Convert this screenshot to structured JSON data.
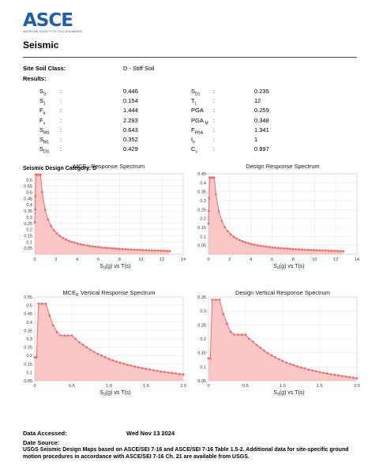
{
  "header": {
    "logo_text": "ASCE",
    "logo_subtext": "AMERICAN SOCIETY OF CIVIL ENGINEERS",
    "title": "Seismic"
  },
  "site": {
    "soil_class_label": "Site Soil Class:",
    "soil_class_value": "D - Stiff Soil",
    "results_label": "Results:"
  },
  "results_left": [
    {
      "sym": "S",
      "sub": "S",
      "colon": ":",
      "value": "0.446"
    },
    {
      "sym": "S",
      "sub": "1",
      "colon": ":",
      "value": "0.154"
    },
    {
      "sym": "F",
      "sub": "a",
      "colon": ":",
      "value": "1.444"
    },
    {
      "sym": "F",
      "sub": "v",
      "colon": ":",
      "value": "2.293"
    },
    {
      "sym": "S",
      "sub": "MS",
      "colon": ":",
      "value": "0.643"
    },
    {
      "sym": "S",
      "sub": "M1",
      "colon": ":",
      "value": "0.352"
    },
    {
      "sym": "S",
      "sub": "DS",
      "colon": ":",
      "value": "0.429"
    }
  ],
  "results_right": [
    {
      "sym": "S",
      "sub": "D1",
      "colon": ":",
      "value": "0.235"
    },
    {
      "sym": "T",
      "sub": "L",
      "colon": ":",
      "value": "12"
    },
    {
      "sym": "PGA",
      "sub": "",
      "colon": ":",
      "value": "0.259"
    },
    {
      "sym": "PGA ",
      "sub": "M",
      "colon": ":",
      "value": "0.348"
    },
    {
      "sym": "F",
      "sub": "PGA",
      "colon": ":",
      "value": "1.341"
    },
    {
      "sym": "I",
      "sub": "e",
      "colon": ":",
      "value": "1"
    },
    {
      "sym": "C",
      "sub": "v",
      "colon": ":",
      "value": "0.997"
    }
  ],
  "sdc_label": "Seismic Design Category: D",
  "chart_data": [
    {
      "type": "area",
      "title_main": "MCE",
      "title_sub": "R",
      "title_rest": " Response Spectrum",
      "xlabel_main": "S",
      "xlabel_sub": "a",
      "xlabel_rest": "(g) vs T(s)",
      "xlim": [
        0,
        14
      ],
      "ylim": [
        0,
        0.65
      ],
      "xticks": [
        "0",
        "2",
        "4",
        "6",
        "8",
        "10",
        "12",
        "14"
      ],
      "yticks": [
        "0.05",
        "0.1",
        "0.15",
        "0.2",
        "0.25",
        "0.3",
        "0.35",
        "0.4",
        "0.45",
        "0.5",
        "0.55",
        "0.6"
      ],
      "kind": "horizontal",
      "params": {
        "peak": 0.643,
        "t0": 0.109,
        "ts": 0.547,
        "tl": 12,
        "sd1": 0.352,
        "tmax": 13
      }
    },
    {
      "type": "area",
      "title_main": "Design Response Spectrum",
      "title_sub": "",
      "title_rest": "",
      "xlabel_main": "S",
      "xlabel_sub": "a",
      "xlabel_rest": "(g) vs T(s)",
      "xlim": [
        0,
        14
      ],
      "ylim": [
        0,
        0.45
      ],
      "xticks": [
        "0",
        "2",
        "4",
        "6",
        "8",
        "10",
        "12",
        "14"
      ],
      "yticks": [
        "0.05",
        "0.1",
        "0.15",
        "0.2",
        "0.25",
        "0.3",
        "0.35",
        "0.4",
        "0.45"
      ],
      "kind": "horizontal",
      "params": {
        "peak": 0.429,
        "t0": 0.109,
        "ts": 0.547,
        "tl": 12,
        "sd1": 0.235,
        "tmax": 13
      }
    },
    {
      "type": "area",
      "title_main": "MCE",
      "title_sub": "R",
      "title_rest": " Vertical Response Spectrum",
      "xlabel_main": "S",
      "xlabel_sub": "a",
      "xlabel_rest": "(g) vs T(s)",
      "xlim": [
        0,
        2
      ],
      "ylim": [
        0.05,
        0.55
      ],
      "xticks": [
        "0",
        "0.5",
        "1.0",
        "1.5",
        "2.0"
      ],
      "yticks": [
        "0.05",
        "0.1",
        "0.15",
        "0.2",
        "0.25",
        "0.3",
        "0.35",
        "0.4",
        "0.45",
        "0.5",
        "0.55"
      ],
      "kind": "vertical",
      "points": [
        [
          0,
          0.19
        ],
        [
          0.025,
          0.19
        ],
        [
          0.05,
          0.51
        ],
        [
          0.1,
          0.51
        ],
        [
          0.15,
          0.51
        ],
        [
          0.2,
          0.44
        ],
        [
          0.25,
          0.38
        ],
        [
          0.3,
          0.34
        ],
        [
          0.35,
          0.32
        ],
        [
          0.4,
          0.32
        ],
        [
          0.45,
          0.32
        ],
        [
          0.5,
          0.32
        ],
        [
          0.55,
          0.3
        ],
        [
          0.6,
          0.28
        ],
        [
          0.65,
          0.265
        ],
        [
          0.7,
          0.25
        ],
        [
          0.75,
          0.235
        ],
        [
          0.8,
          0.222
        ],
        [
          0.85,
          0.21
        ],
        [
          0.9,
          0.2
        ],
        [
          0.95,
          0.19
        ],
        [
          1.0,
          0.18
        ],
        [
          1.05,
          0.172
        ],
        [
          1.1,
          0.165
        ],
        [
          1.15,
          0.158
        ],
        [
          1.2,
          0.152
        ],
        [
          1.25,
          0.146
        ],
        [
          1.3,
          0.14
        ],
        [
          1.35,
          0.135
        ],
        [
          1.4,
          0.13
        ],
        [
          1.45,
          0.125
        ],
        [
          1.5,
          0.121
        ],
        [
          1.55,
          0.117
        ],
        [
          1.6,
          0.113
        ],
        [
          1.65,
          0.109
        ],
        [
          1.7,
          0.105
        ],
        [
          1.75,
          0.102
        ],
        [
          1.8,
          0.099
        ],
        [
          1.85,
          0.096
        ],
        [
          1.9,
          0.093
        ],
        [
          1.95,
          0.09
        ],
        [
          2.0,
          0.088
        ]
      ]
    },
    {
      "type": "area",
      "title_main": "Design Vertical Response Spectrum",
      "title_sub": "",
      "title_rest": "",
      "xlabel_main": "S",
      "xlabel_sub": "a",
      "xlabel_rest": "(g) vs T(s)",
      "xlim": [
        0,
        2
      ],
      "ylim": [
        0.05,
        0.35
      ],
      "xticks": [
        "0",
        "0.5",
        "1.0",
        "1.5",
        "2.0"
      ],
      "yticks": [
        "0.05",
        "0.1",
        "0.15",
        "0.2",
        "0.25",
        "0.3",
        "0.35"
      ],
      "kind": "vertical",
      "points": [
        [
          0,
          0.13
        ],
        [
          0.025,
          0.13
        ],
        [
          0.05,
          0.34
        ],
        [
          0.1,
          0.34
        ],
        [
          0.15,
          0.34
        ],
        [
          0.2,
          0.29
        ],
        [
          0.25,
          0.255
        ],
        [
          0.3,
          0.225
        ],
        [
          0.35,
          0.215
        ],
        [
          0.4,
          0.215
        ],
        [
          0.45,
          0.215
        ],
        [
          0.5,
          0.215
        ],
        [
          0.55,
          0.2
        ],
        [
          0.6,
          0.19
        ],
        [
          0.65,
          0.178
        ],
        [
          0.7,
          0.168
        ],
        [
          0.75,
          0.158
        ],
        [
          0.8,
          0.149
        ],
        [
          0.85,
          0.141
        ],
        [
          0.9,
          0.134
        ],
        [
          0.95,
          0.127
        ],
        [
          1.0,
          0.121
        ],
        [
          1.05,
          0.115
        ],
        [
          1.1,
          0.11
        ],
        [
          1.15,
          0.106
        ],
        [
          1.2,
          0.101
        ],
        [
          1.25,
          0.097
        ],
        [
          1.3,
          0.094
        ],
        [
          1.35,
          0.09
        ],
        [
          1.4,
          0.087
        ],
        [
          1.45,
          0.084
        ],
        [
          1.5,
          0.081
        ],
        [
          1.55,
          0.078
        ],
        [
          1.6,
          0.076
        ],
        [
          1.65,
          0.073
        ],
        [
          1.7,
          0.071
        ],
        [
          1.75,
          0.069
        ],
        [
          1.8,
          0.067
        ],
        [
          1.85,
          0.065
        ],
        [
          1.9,
          0.063
        ],
        [
          1.95,
          0.061
        ],
        [
          2.0,
          0.059
        ]
      ]
    }
  ],
  "colors": {
    "series": "#f26b6b",
    "fill": "#f8b4b4",
    "grid": "#e3e3e3",
    "brand": "#1f5fa8"
  },
  "footer": {
    "accessed_label": "Data Accessed:",
    "accessed_value": "Wed Nov 13 2024",
    "source_label": "Date Source:",
    "source_text": "USGS Seismic Design Maps based on ASCE/SEI 7-16 and ASCE/SEI 7-16 Table 1.5-2. Additional data for site-specific ground motion procedures in accordance with ASCE/SEI 7-16 Ch. 21 are available from USGS."
  }
}
